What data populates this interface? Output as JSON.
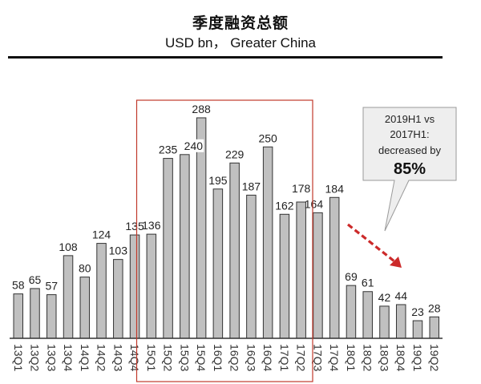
{
  "header": {
    "title": "季度融资总额",
    "subtitle": "USD bn， Greater China"
  },
  "callout": {
    "line1": "2019H1 vs",
    "line2": "2017H1:",
    "line3": "decreased by",
    "highlight": "85%"
  },
  "colors": {
    "bar_fill": "#c0c0c0",
    "bar_stroke": "#333333",
    "highlight_box": "#c0392b",
    "arrow": "#cc2a2a",
    "callout_fill": "#eeeeee",
    "callout_stroke": "#9a9a9a"
  },
  "chart_data": {
    "type": "bar",
    "title": "季度融资总额",
    "subtitle": "USD bn， Greater China",
    "xlabel": "",
    "ylabel": "USD bn",
    "categories": [
      "13Q1",
      "13Q2",
      "13Q3",
      "13Q4",
      "14Q1",
      "14Q2",
      "14Q3",
      "14Q4",
      "15Q1",
      "15Q2",
      "15Q3",
      "15Q4",
      "16Q1",
      "16Q2",
      "16Q3",
      "16Q4",
      "17Q1",
      "17Q2",
      "17Q3",
      "17Q4",
      "18Q1",
      "18Q2",
      "18Q3",
      "18Q4",
      "19Q1",
      "19Q2"
    ],
    "values": [
      58,
      65,
      57,
      108,
      80,
      124,
      103,
      135,
      136,
      235,
      240,
      288,
      195,
      229,
      187,
      250,
      162,
      178,
      164,
      184,
      69,
      61,
      42,
      44,
      23,
      28
    ],
    "ylim": [
      0,
      300
    ],
    "grid": false,
    "axis_y_visible": false,
    "data_labels": true,
    "highlighted_range": [
      "15Q1",
      "17Q2"
    ],
    "annotations": [
      {
        "type": "callout",
        "text": "2019H1 vs 2017H1: decreased by 85%"
      },
      {
        "type": "arrow",
        "style": "dashed",
        "direction": "down-right",
        "from": "17Q4",
        "to": "19Q2"
      }
    ]
  }
}
